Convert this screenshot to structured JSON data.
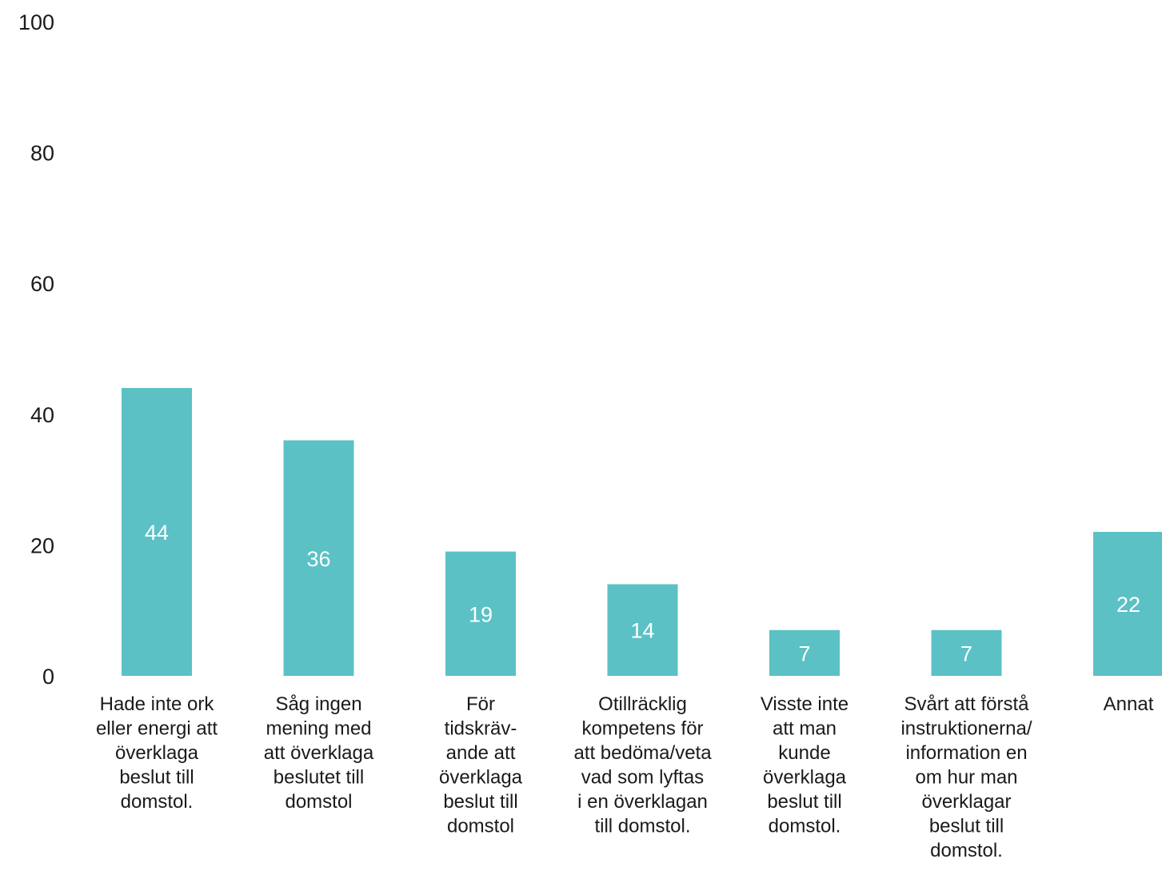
{
  "chart_data": {
    "type": "bar",
    "title": "",
    "xlabel": "",
    "ylabel": "",
    "ylim": [
      0,
      100
    ],
    "yticks": [
      0,
      20,
      40,
      60,
      80,
      100
    ],
    "grid": false,
    "bar_color": "#5bc1c5",
    "label_color": "#ffffff",
    "text_color": "#1a1a1a",
    "categories": [
      [
        "Hade inte ork",
        "eller energi att",
        "överklaga",
        "beslut till",
        "domstol."
      ],
      [
        "Såg ingen",
        "mening med",
        "att överklaga",
        "beslutet till",
        "domstol"
      ],
      [
        "För",
        "tidskräv-",
        "ande att",
        "överklaga",
        "beslut till",
        "domstol"
      ],
      [
        "Otillräcklig",
        "kompetens för",
        "att bedöma/veta",
        "vad som lyftas",
        "i en överklagan",
        "till domstol."
      ],
      [
        "Visste inte",
        "att man",
        "kunde",
        "överklaga",
        "beslut till",
        "domstol."
      ],
      [
        "Svårt att förstå",
        "instruktionerna/",
        "information en",
        "om hur man",
        "överklagar",
        "beslut till",
        "domstol."
      ],
      [
        "Annat"
      ]
    ],
    "values": [
      44,
      36,
      19,
      14,
      7,
      7,
      22
    ],
    "data_labels": [
      "44",
      "36",
      "19",
      "14",
      "7",
      "7",
      "22"
    ]
  }
}
